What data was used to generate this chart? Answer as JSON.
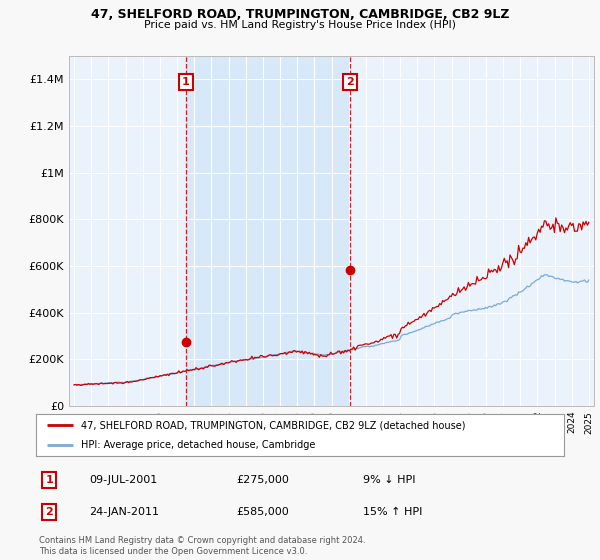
{
  "title": "47, SHELFORD ROAD, TRUMPINGTON, CAMBRIDGE, CB2 9LZ",
  "subtitle": "Price paid vs. HM Land Registry's House Price Index (HPI)",
  "background_color": "#f8f8f8",
  "plot_bg_color": "#eaf2fb",
  "shade_color": "#d0e4f7",
  "ylim": [
    0,
    1500000
  ],
  "yticks": [
    0,
    200000,
    400000,
    600000,
    800000,
    1000000,
    1200000,
    1400000
  ],
  "ytick_labels": [
    "£0",
    "£200K",
    "£400K",
    "£600K",
    "£800K",
    "£1M",
    "£1.2M",
    "£1.4M"
  ],
  "sale1_date": 2001.52,
  "sale1_price": 275000,
  "sale2_date": 2011.07,
  "sale2_price": 585000,
  "sale_color": "#cc0000",
  "hpi_color": "#7aaadd",
  "vline_color": "#cc0000",
  "legend_label1": "47, SHELFORD ROAD, TRUMPINGTON, CAMBRIDGE, CB2 9LZ (detached house)",
  "legend_label2": "HPI: Average price, detached house, Cambridge",
  "annotation1_num": "1",
  "annotation1_date": "09-JUL-2001",
  "annotation1_price": "£275,000",
  "annotation1_hpi": "9% ↓ HPI",
  "annotation2_num": "2",
  "annotation2_date": "24-JAN-2011",
  "annotation2_price": "£585,000",
  "annotation2_hpi": "15% ↑ HPI",
  "footnote": "Contains HM Land Registry data © Crown copyright and database right 2024.\nThis data is licensed under the Open Government Licence v3.0."
}
